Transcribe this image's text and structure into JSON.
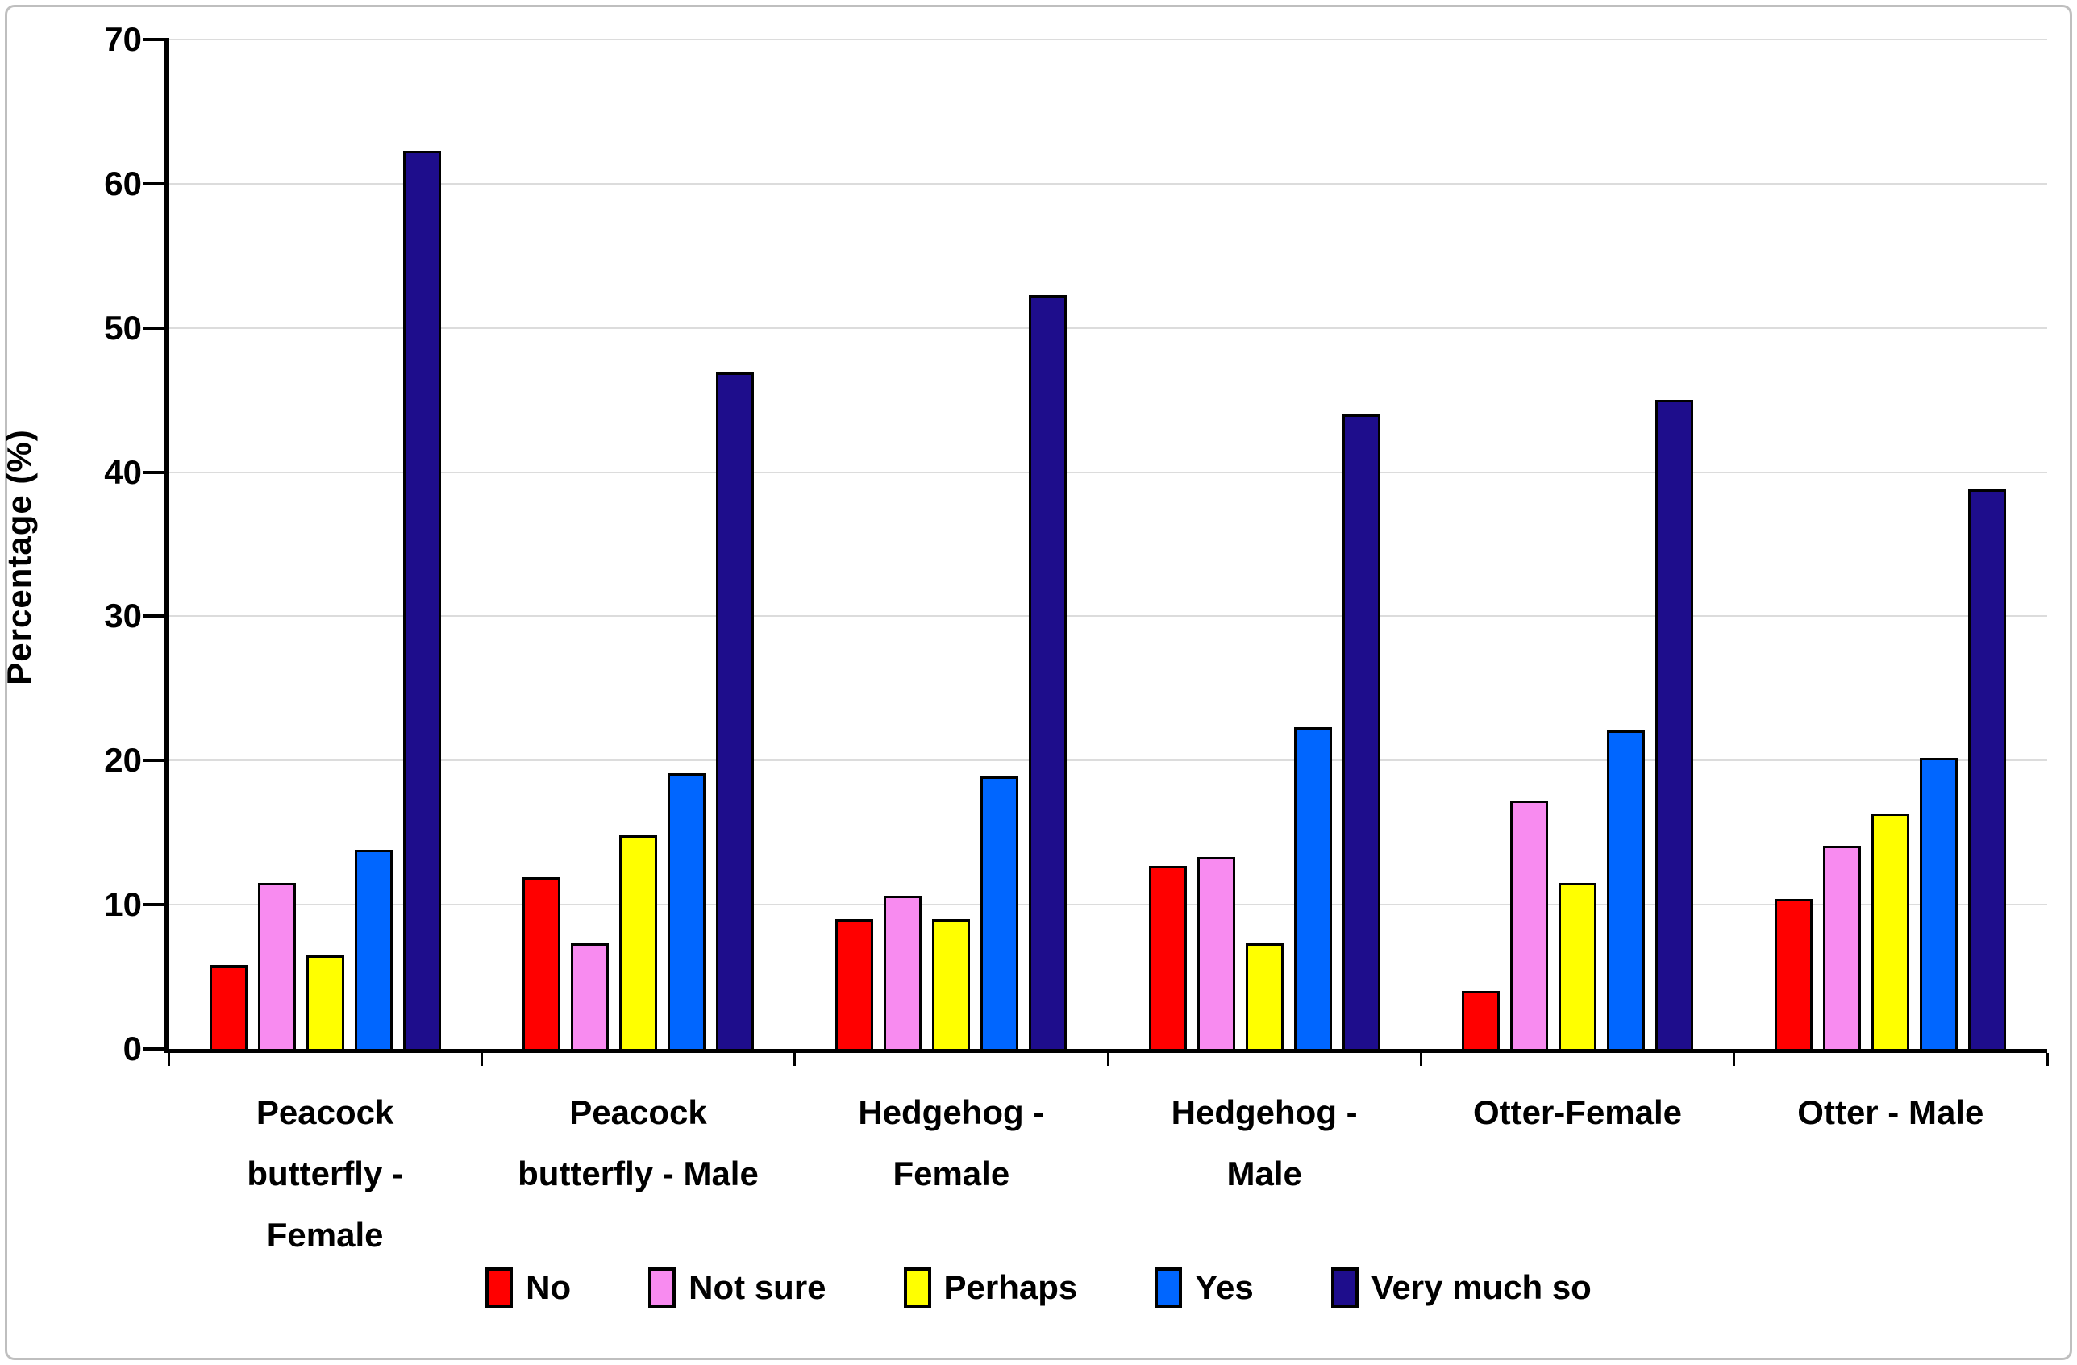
{
  "figure": {
    "background": "#FFFFFF",
    "border_color": "#BFBFBF"
  },
  "chart_data": {
    "type": "bar",
    "title": "",
    "ylabel": "Percentage (%)",
    "xlabel": "",
    "ylim": [
      0,
      70
    ],
    "yticks": [
      0,
      10,
      20,
      30,
      40,
      50,
      60,
      70
    ],
    "grid": "horizontal gridlines every 10",
    "gridline_color": "#DCDCDC",
    "axis_color": "#000000",
    "bar_outline_color": "#000000",
    "legend_position": "bottom-center",
    "categories": [
      "Peacock butterfly - Female",
      "Peacock butterfly - Male",
      "Hedgehog - Female",
      "Hedgehog - Male",
      "Otter-Female",
      "Otter - Male"
    ],
    "category_label_lines": [
      [
        "Peacock",
        "butterfly -",
        "Female"
      ],
      [
        "Peacock",
        "butterfly - Male"
      ],
      [
        "Hedgehog -",
        "Female"
      ],
      [
        "Hedgehog -",
        "Male"
      ],
      [
        "Otter-Female"
      ],
      [
        "Otter - Male"
      ]
    ],
    "series": [
      {
        "name": "No",
        "color": "#FF0000",
        "values": [
          5.8,
          11.9,
          9.0,
          12.7,
          4.0,
          10.4
        ]
      },
      {
        "name": "Not sure",
        "color": "#F88BF0",
        "values": [
          11.5,
          7.3,
          10.6,
          13.3,
          17.2,
          14.1
        ]
      },
      {
        "name": "Perhaps",
        "color": "#FFFF00",
        "values": [
          6.5,
          14.8,
          9.0,
          7.3,
          11.5,
          16.3
        ]
      },
      {
        "name": "Yes",
        "color": "#0066FF",
        "values": [
          13.8,
          19.1,
          18.9,
          22.3,
          22.1,
          20.2
        ]
      },
      {
        "name": "Very much so",
        "color": "#1E0D8C",
        "values": [
          62.3,
          46.9,
          52.3,
          44.0,
          45.0,
          38.8
        ]
      }
    ]
  }
}
